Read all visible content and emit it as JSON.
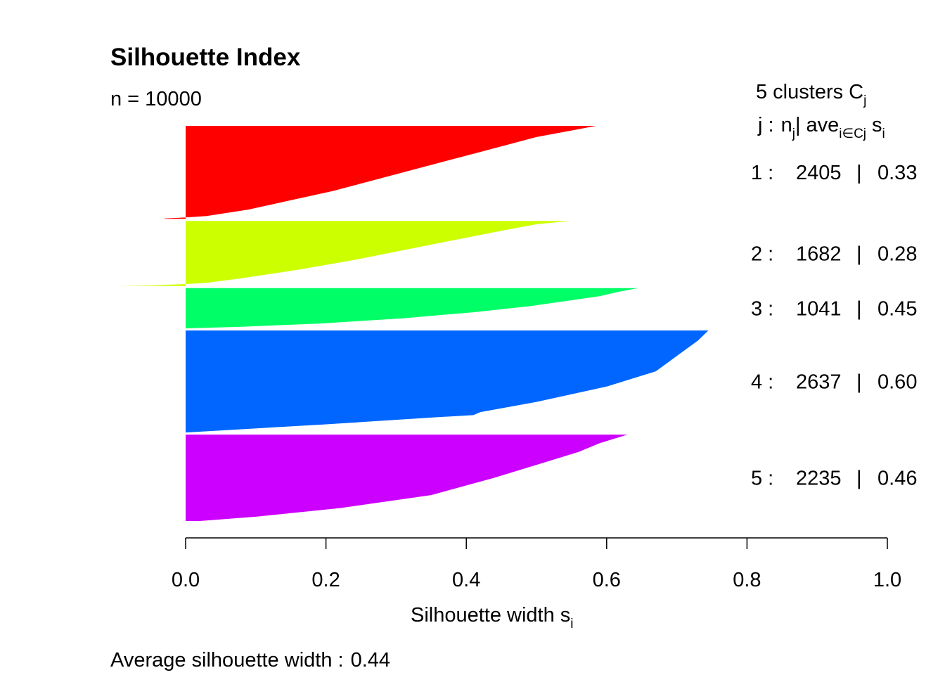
{
  "chart_data": {
    "type": "bar",
    "orientation": "horizontal",
    "title": "Silhouette Index",
    "subtitle": "n = 10000",
    "xlabel": "Silhouette width",
    "xlabel_sub": "i",
    "xlim": [
      0,
      1
    ],
    "xticks": [
      "0.0",
      "0.2",
      "0.4",
      "0.6",
      "0.8",
      "1.0"
    ],
    "xtick_values": [
      0,
      0.2,
      0.4,
      0.6,
      0.8,
      1.0
    ],
    "footer_label": "Average silhouette width :",
    "average_width": "0.44",
    "legend": {
      "line1_prefix": "5  clusters  C",
      "line1_sub": "j",
      "line2_j": "j :",
      "line2_n": "n",
      "line2_sub_j": "j",
      "line2_ave": "| ave",
      "line2_sub_icj": "i∈Cj",
      "line2_s": "s",
      "line2_sub_i": "i"
    },
    "clusters": [
      {
        "j": "1 :",
        "n": "2405",
        "sep": "|",
        "ave": "0.33",
        "color": "#FF0000",
        "profile": [
          [
            0,
            0.585
          ],
          [
            0.05,
            0.55
          ],
          [
            0.12,
            0.5
          ],
          [
            0.2,
            0.46
          ],
          [
            0.3,
            0.41
          ],
          [
            0.4,
            0.36
          ],
          [
            0.5,
            0.31
          ],
          [
            0.6,
            0.26
          ],
          [
            0.7,
            0.21
          ],
          [
            0.8,
            0.15
          ],
          [
            0.9,
            0.09
          ],
          [
            0.97,
            0.03
          ],
          [
            0.985,
            0.0
          ],
          [
            0.995,
            -0.03
          ],
          [
            1,
            -0.03
          ]
        ]
      },
      {
        "j": "2 :",
        "n": "1682",
        "sep": "|",
        "ave": "0.28",
        "color": "#CCFF00",
        "profile": [
          [
            0,
            0.548
          ],
          [
            0.05,
            0.5
          ],
          [
            0.15,
            0.45
          ],
          [
            0.3,
            0.38
          ],
          [
            0.45,
            0.31
          ],
          [
            0.6,
            0.24
          ],
          [
            0.75,
            0.16
          ],
          [
            0.88,
            0.08
          ],
          [
            0.95,
            0.03
          ],
          [
            0.97,
            0.0
          ],
          [
            0.99,
            -0.05
          ],
          [
            1,
            -0.095
          ]
        ]
      },
      {
        "j": "3 :",
        "n": "1041",
        "sep": "|",
        "ave": "0.45",
        "color": "#00FF66",
        "profile": [
          [
            0,
            0.645
          ],
          [
            0.08,
            0.62
          ],
          [
            0.2,
            0.59
          ],
          [
            0.3,
            0.55
          ],
          [
            0.45,
            0.49
          ],
          [
            0.6,
            0.41
          ],
          [
            0.75,
            0.31
          ],
          [
            0.88,
            0.19
          ],
          [
            0.96,
            0.08
          ],
          [
            1,
            0.0
          ]
        ]
      },
      {
        "j": "4 :",
        "n": "2637",
        "sep": "|",
        "ave": "0.60",
        "color": "#0066FF",
        "profile": [
          [
            0,
            0.745
          ],
          [
            0.1,
            0.73
          ],
          [
            0.25,
            0.7
          ],
          [
            0.4,
            0.67
          ],
          [
            0.55,
            0.6
          ],
          [
            0.7,
            0.5
          ],
          [
            0.8,
            0.42
          ],
          [
            0.83,
            0.41
          ],
          [
            0.85,
            0.36
          ],
          [
            0.92,
            0.2
          ],
          [
            0.98,
            0.05
          ],
          [
            1,
            0.0
          ]
        ]
      },
      {
        "j": "5 :",
        "n": "2235",
        "sep": "|",
        "ave": "0.46",
        "color": "#CC00FF",
        "profile": [
          [
            0,
            0.63
          ],
          [
            0.1,
            0.59
          ],
          [
            0.2,
            0.56
          ],
          [
            0.3,
            0.52
          ],
          [
            0.5,
            0.44
          ],
          [
            0.7,
            0.35
          ],
          [
            0.85,
            0.22
          ],
          [
            0.95,
            0.1
          ],
          [
            1,
            0.02
          ]
        ]
      }
    ]
  }
}
